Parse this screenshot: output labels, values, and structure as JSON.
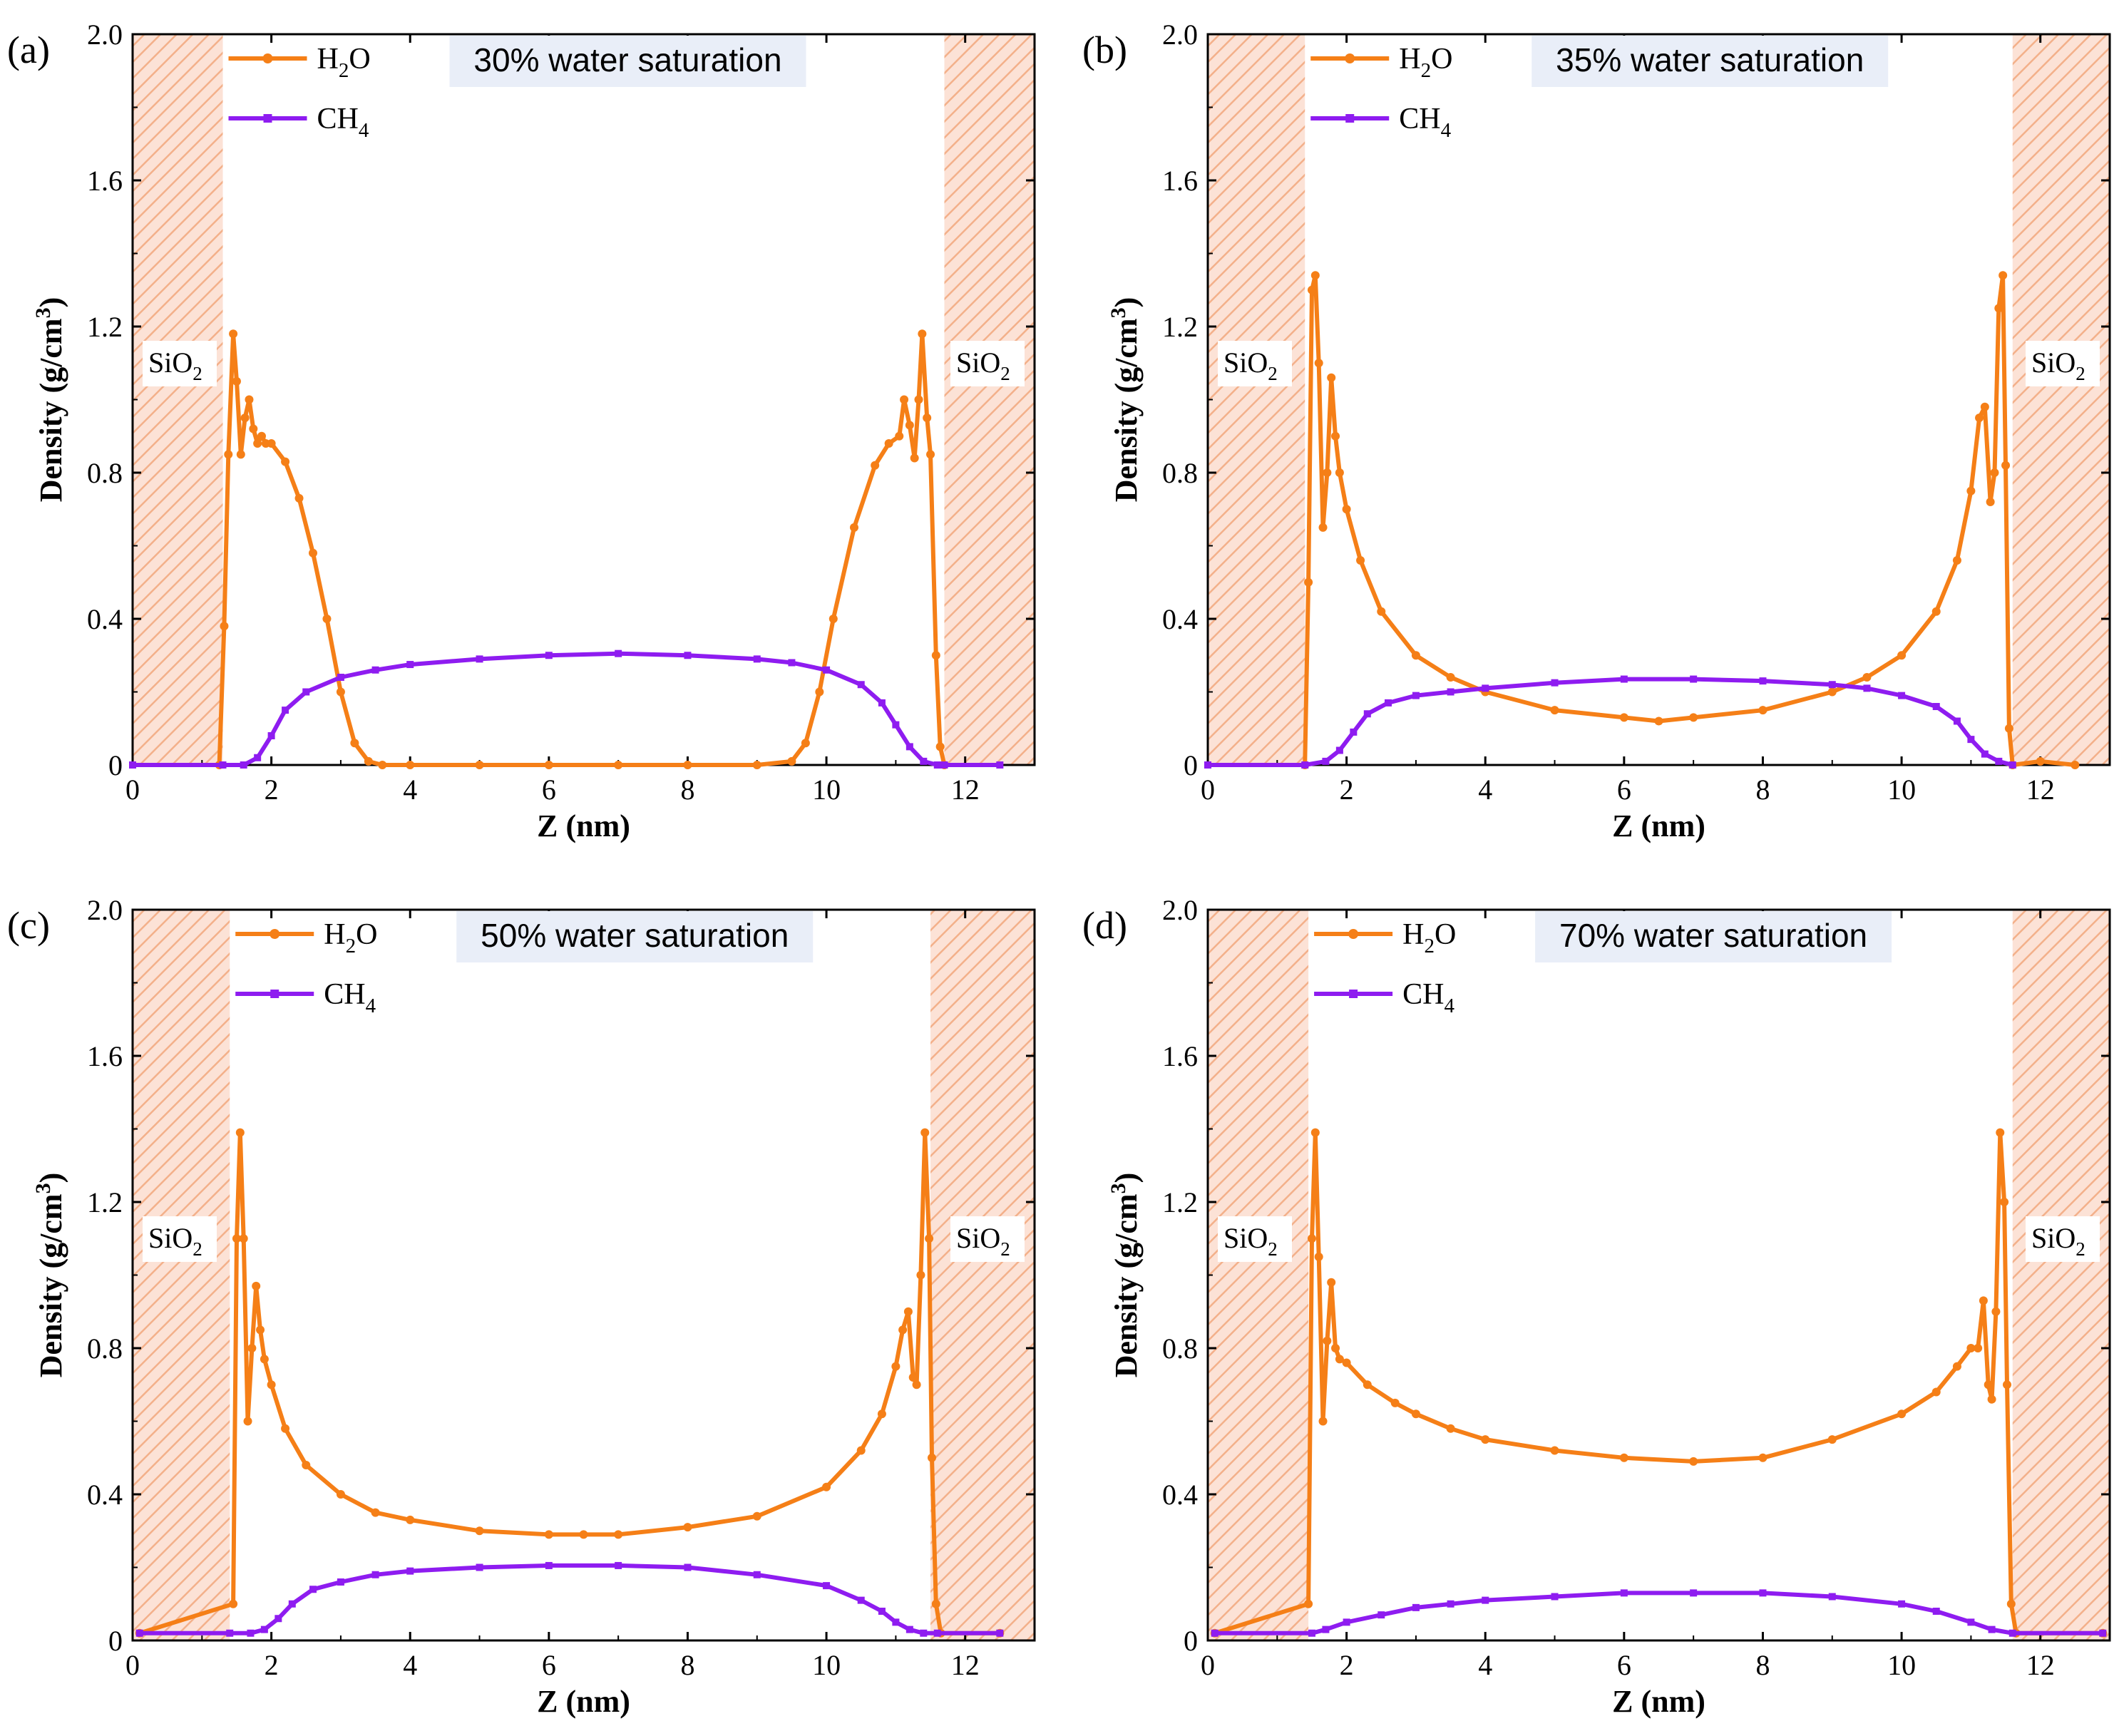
{
  "colors": {
    "h2o": "#F57F17",
    "ch4": "#8E1CF0",
    "wall_fill": "#FCE2D6",
    "wall_hatch": "#F3B08A",
    "label_bg": "#E9EEF8"
  },
  "shared": {
    "xlabel": "Z (nm)",
    "ylabel": "Density (g/cm",
    "ylabel_sup": "3",
    "ylabel_close": ")",
    "xticks": [
      "0",
      "2",
      "4",
      "6",
      "8",
      "10",
      "12"
    ],
    "yticks": [
      "0",
      "0.4",
      "0.8",
      "1.2",
      "1.6",
      "2.0"
    ],
    "legend": {
      "h2o_main": "H",
      "h2o_sub": "2",
      "h2o_end": "O",
      "ch4_main": "CH",
      "ch4_sub": "4"
    },
    "wall_label": {
      "main": "SiO",
      "sub": "2"
    }
  },
  "chart_data": [
    {
      "panel_label": "(a)",
      "type": "line",
      "title": "30% water saturation",
      "xlabel": "Z (nm)",
      "ylabel": "Density (g/cm3)",
      "xlim": [
        0,
        13
      ],
      "ylim": [
        0,
        2.0
      ],
      "walls": [
        [
          0,
          1.3
        ],
        [
          11.7,
          13
        ]
      ],
      "series": [
        {
          "name": "H2O",
          "x": [
            1.25,
            1.32,
            1.38,
            1.45,
            1.5,
            1.56,
            1.62,
            1.68,
            1.74,
            1.8,
            1.86,
            1.92,
            2.0,
            2.2,
            2.4,
            2.6,
            2.8,
            3.0,
            3.2,
            3.4,
            3.6,
            4.0,
            5.0,
            6.0,
            7.0,
            8.0,
            9.0,
            9.5,
            9.7,
            9.9,
            10.1,
            10.4,
            10.7,
            10.9,
            11.05,
            11.12,
            11.2,
            11.27,
            11.33,
            11.38,
            11.45,
            11.5,
            11.58,
            11.64,
            11.7
          ],
          "values": [
            0.0,
            0.38,
            0.85,
            1.18,
            1.05,
            0.85,
            0.95,
            1.0,
            0.92,
            0.88,
            0.9,
            0.88,
            0.88,
            0.83,
            0.73,
            0.58,
            0.4,
            0.2,
            0.06,
            0.01,
            0.0,
            0.0,
            0.0,
            0.0,
            0.0,
            0.0,
            0.0,
            0.01,
            0.06,
            0.2,
            0.4,
            0.65,
            0.82,
            0.88,
            0.9,
            1.0,
            0.93,
            0.84,
            1.0,
            1.18,
            0.95,
            0.85,
            0.3,
            0.05,
            0.0
          ]
        },
        {
          "name": "CH4",
          "x": [
            0,
            1.3,
            1.6,
            1.8,
            2.0,
            2.2,
            2.5,
            3.0,
            3.5,
            4.0,
            5.0,
            6.0,
            7.0,
            8.0,
            9.0,
            9.5,
            10.0,
            10.5,
            10.8,
            11.0,
            11.2,
            11.4,
            11.6,
            11.7,
            12.5
          ],
          "values": [
            0.0,
            0.0,
            0.0,
            0.02,
            0.08,
            0.15,
            0.2,
            0.24,
            0.26,
            0.275,
            0.29,
            0.3,
            0.305,
            0.3,
            0.29,
            0.28,
            0.26,
            0.22,
            0.17,
            0.11,
            0.05,
            0.01,
            0.0,
            0.0,
            0.0
          ]
        }
      ]
    },
    {
      "panel_label": "(b)",
      "type": "line",
      "title": "35% water saturation",
      "xlabel": "Z (nm)",
      "ylabel": "Density (g/cm3)",
      "xlim": [
        0,
        13
      ],
      "ylim": [
        0,
        2.0
      ],
      "walls": [
        [
          0,
          1.4
        ],
        [
          11.6,
          13
        ]
      ],
      "series": [
        {
          "name": "H2O",
          "x": [
            1.4,
            1.45,
            1.5,
            1.55,
            1.6,
            1.66,
            1.72,
            1.78,
            1.84,
            1.9,
            2.0,
            2.2,
            2.5,
            3.0,
            3.5,
            4.0,
            5.0,
            6.0,
            6.5,
            7.0,
            8.0,
            9.0,
            9.5,
            10.0,
            10.5,
            10.8,
            11.0,
            11.12,
            11.2,
            11.28,
            11.34,
            11.4,
            11.46,
            11.5,
            11.55,
            11.6,
            12.0,
            12.5
          ],
          "values": [
            0.0,
            0.5,
            1.3,
            1.34,
            1.1,
            0.65,
            0.8,
            1.06,
            0.9,
            0.8,
            0.7,
            0.56,
            0.42,
            0.3,
            0.24,
            0.2,
            0.15,
            0.13,
            0.12,
            0.13,
            0.15,
            0.2,
            0.24,
            0.3,
            0.42,
            0.56,
            0.75,
            0.95,
            0.98,
            0.72,
            0.8,
            1.25,
            1.34,
            0.82,
            0.1,
            0.0,
            0.01,
            0.0
          ]
        },
        {
          "name": "CH4",
          "x": [
            0,
            1.4,
            1.7,
            1.9,
            2.1,
            2.3,
            2.6,
            3.0,
            3.5,
            4.0,
            5.0,
            6.0,
            7.0,
            8.0,
            9.0,
            9.5,
            10.0,
            10.5,
            10.8,
            11.0,
            11.2,
            11.4,
            11.6
          ],
          "values": [
            0.0,
            0.0,
            0.01,
            0.04,
            0.09,
            0.14,
            0.17,
            0.19,
            0.2,
            0.21,
            0.225,
            0.235,
            0.235,
            0.23,
            0.22,
            0.21,
            0.19,
            0.16,
            0.12,
            0.07,
            0.03,
            0.01,
            0.0
          ]
        }
      ]
    },
    {
      "panel_label": "(c)",
      "type": "line",
      "title": "50% water saturation",
      "xlabel": "Z (nm)",
      "ylabel": "Density (g/cm3)",
      "xlim": [
        0,
        13
      ],
      "ylim": [
        0,
        2.0
      ],
      "walls": [
        [
          0,
          1.4
        ],
        [
          11.5,
          13
        ]
      ],
      "series": [
        {
          "name": "H2O",
          "x": [
            0.1,
            1.45,
            1.5,
            1.55,
            1.6,
            1.66,
            1.72,
            1.78,
            1.84,
            1.9,
            2.0,
            2.2,
            2.5,
            3.0,
            3.5,
            4.0,
            5.0,
            6.0,
            6.5,
            7.0,
            8.0,
            9.0,
            10.0,
            10.5,
            10.8,
            11.0,
            11.1,
            11.18,
            11.25,
            11.3,
            11.36,
            11.42,
            11.48,
            11.52,
            11.58,
            11.65,
            12.5
          ],
          "values": [
            0.02,
            0.1,
            1.1,
            1.39,
            1.1,
            0.6,
            0.8,
            0.97,
            0.85,
            0.77,
            0.7,
            0.58,
            0.48,
            0.4,
            0.35,
            0.33,
            0.3,
            0.29,
            0.29,
            0.29,
            0.31,
            0.34,
            0.42,
            0.52,
            0.62,
            0.75,
            0.85,
            0.9,
            0.72,
            0.7,
            1.0,
            1.39,
            1.1,
            0.5,
            0.1,
            0.02,
            0.02
          ]
        },
        {
          "name": "CH4",
          "x": [
            0.1,
            1.4,
            1.7,
            1.9,
            2.1,
            2.3,
            2.6,
            3.0,
            3.5,
            4.0,
            5.0,
            6.0,
            7.0,
            8.0,
            9.0,
            10.0,
            10.5,
            10.8,
            11.0,
            11.2,
            11.4,
            11.6,
            12.5
          ],
          "values": [
            0.02,
            0.02,
            0.02,
            0.03,
            0.06,
            0.1,
            0.14,
            0.16,
            0.18,
            0.19,
            0.2,
            0.205,
            0.205,
            0.2,
            0.18,
            0.15,
            0.11,
            0.08,
            0.05,
            0.03,
            0.02,
            0.02,
            0.02
          ]
        }
      ]
    },
    {
      "panel_label": "(d)",
      "type": "line",
      "title": "70% water saturation",
      "xlabel": "Z (nm)",
      "ylabel": "Density (g/cm3)",
      "xlim": [
        0,
        13
      ],
      "ylim": [
        0,
        2.0
      ],
      "walls": [
        [
          0,
          1.45
        ],
        [
          11.6,
          13
        ]
      ],
      "series": [
        {
          "name": "H2O",
          "x": [
            0.1,
            1.45,
            1.5,
            1.55,
            1.6,
            1.66,
            1.72,
            1.78,
            1.84,
            1.9,
            2.0,
            2.3,
            2.7,
            3.0,
            3.5,
            4.0,
            5.0,
            6.0,
            7.0,
            8.0,
            9.0,
            10.0,
            10.5,
            10.8,
            11.0,
            11.1,
            11.18,
            11.25,
            11.3,
            11.36,
            11.42,
            11.48,
            11.52,
            11.58,
            11.65,
            12.9
          ],
          "values": [
            0.02,
            0.1,
            1.1,
            1.39,
            1.05,
            0.6,
            0.82,
            0.98,
            0.8,
            0.77,
            0.76,
            0.7,
            0.65,
            0.62,
            0.58,
            0.55,
            0.52,
            0.5,
            0.49,
            0.5,
            0.55,
            0.62,
            0.68,
            0.75,
            0.8,
            0.8,
            0.93,
            0.7,
            0.66,
            0.9,
            1.39,
            1.2,
            0.7,
            0.1,
            0.02,
            0.02
          ]
        },
        {
          "name": "CH4",
          "x": [
            0.1,
            1.5,
            1.7,
            2.0,
            2.5,
            3.0,
            3.5,
            4.0,
            5.0,
            6.0,
            7.0,
            8.0,
            9.0,
            10.0,
            10.5,
            11.0,
            11.3,
            11.6,
            12.9
          ],
          "values": [
            0.02,
            0.02,
            0.03,
            0.05,
            0.07,
            0.09,
            0.1,
            0.11,
            0.12,
            0.13,
            0.13,
            0.13,
            0.12,
            0.1,
            0.08,
            0.05,
            0.03,
            0.02,
            0.02
          ]
        }
      ]
    }
  ]
}
